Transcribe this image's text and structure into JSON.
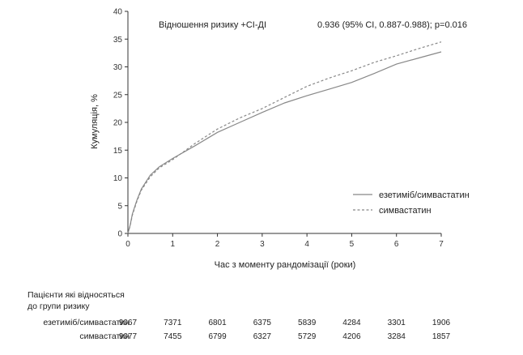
{
  "chart_data": {
    "type": "line",
    "title": "",
    "annotation_label": "Відношення ризику +CI-ДІ",
    "annotation_value": "0.936 (95% CI, 0.887-0.988); p=0.016",
    "xlabel": "Час з моменту рандомізації (роки)",
    "ylabel": "Кумуляція, %",
    "xlim": [
      0,
      7
    ],
    "ylim": [
      0,
      40
    ],
    "x_ticks": [
      "0",
      "1",
      "2",
      "3",
      "4",
      "5",
      "6",
      "7"
    ],
    "y_ticks": [
      "0",
      "5",
      "10",
      "15",
      "20",
      "25",
      "30",
      "35",
      "40"
    ],
    "grid": false,
    "legend_position": "right",
    "series": [
      {
        "name": "езетиміб/симвастатин",
        "style": "solid",
        "color": "#888888",
        "x": [
          0,
          0.05,
          0.1,
          0.2,
          0.3,
          0.5,
          0.7,
          1.0,
          1.5,
          2.0,
          2.5,
          3.0,
          3.5,
          4.0,
          4.5,
          5.0,
          5.5,
          6.0,
          6.5,
          7.0
        ],
        "y": [
          0,
          1.5,
          3.5,
          6.0,
          8.0,
          10.5,
          12.0,
          13.5,
          15.8,
          18.2,
          20.0,
          21.8,
          23.5,
          24.8,
          26.0,
          27.2,
          28.8,
          30.5,
          31.6,
          32.7
        ]
      },
      {
        "name": "симвастатин",
        "style": "dashed",
        "color": "#888888",
        "x": [
          0,
          0.05,
          0.1,
          0.2,
          0.3,
          0.5,
          0.7,
          1.0,
          1.5,
          2.0,
          2.5,
          3.0,
          3.5,
          4.0,
          4.5,
          5.0,
          5.5,
          6.0,
          6.5,
          7.0
        ],
        "y": [
          0,
          1.4,
          3.3,
          5.8,
          7.8,
          10.2,
          11.8,
          13.3,
          16.2,
          18.8,
          20.8,
          22.5,
          24.5,
          26.5,
          28.0,
          29.3,
          30.8,
          32.0,
          33.3,
          34.5
        ]
      }
    ]
  },
  "risk_table": {
    "title_line1": "Пацієнти які відносяться",
    "title_line2": "до групи ризику",
    "rows": [
      {
        "label": "езетиміб/симвастатин",
        "values": [
          "9067",
          "7371",
          "6801",
          "6375",
          "5839",
          "4284",
          "3301",
          "1906"
        ]
      },
      {
        "label": "симвастатин",
        "values": [
          "9077",
          "7455",
          "6799",
          "6327",
          "5729",
          "4206",
          "3284",
          "1857"
        ]
      }
    ]
  }
}
